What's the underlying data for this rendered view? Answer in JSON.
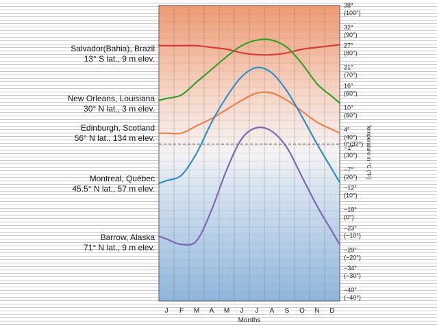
{
  "chart_data": {
    "type": "line",
    "xlabel": "Months",
    "ylabel": "Temperature in °C (°F)",
    "categories": [
      "J",
      "F",
      "M",
      "A",
      "M",
      "J",
      "J",
      "A",
      "S",
      "O",
      "N",
      "D"
    ],
    "ylim": [
      -43,
      38
    ],
    "y_ticks": [
      {
        "c": 38,
        "c_label": "38°",
        "f_label": "(100°)"
      },
      {
        "c": 32,
        "c_label": "32°",
        "f_label": "(90°)"
      },
      {
        "c": 27,
        "c_label": "27°",
        "f_label": "(80°)"
      },
      {
        "c": 21,
        "c_label": "21°",
        "f_label": "(70°)"
      },
      {
        "c": 16,
        "c_label": "16°",
        "f_label": "(60°)"
      },
      {
        "c": 10,
        "c_label": "10°",
        "f_label": "(50°)"
      },
      {
        "c": 4,
        "c_label": "4°",
        "f_label": "(40°)"
      },
      {
        "c": 0,
        "c_label": "0°(32°)",
        "f_label": ""
      },
      {
        "c": -1,
        "c_label": "−1°",
        "f_label": "(30°)"
      },
      {
        "c": -7,
        "c_label": "−7°",
        "f_label": "(20°)"
      },
      {
        "c": -12,
        "c_label": "−12°",
        "f_label": "(10°)"
      },
      {
        "c": -18,
        "c_label": "−18°",
        "f_label": "(0°)"
      },
      {
        "c": -23,
        "c_label": "−23°",
        "f_label": "(−10°)"
      },
      {
        "c": -29,
        "c_label": "−29°",
        "f_label": "(−20°)"
      },
      {
        "c": -34,
        "c_label": "−34°",
        "f_label": "(−30°)"
      },
      {
        "c": -40,
        "c_label": "−40°",
        "f_label": "(−40°)"
      }
    ],
    "grid": true,
    "series": [
      {
        "name": "Salvador(Bahia), Brazil",
        "label2": "13° S lat., 9 m elev.",
        "color": "#d93a34",
        "values": [
          27,
          27,
          27,
          26.5,
          26,
          25,
          24.5,
          24.5,
          25,
          26,
          26.5,
          27
        ]
      },
      {
        "name": "New Orleans, Louisiana",
        "label2": "30° N lat., 3 m elev.",
        "color": "#33a02c",
        "values": [
          12.5,
          13.5,
          17,
          20.5,
          24,
          27,
          28.5,
          28.5,
          26.5,
          22,
          16.5,
          13
        ]
      },
      {
        "name": "Edinburgh, Scotland",
        "label2": "56° N lat., 134 m elev.",
        "color": "#e8814a",
        "values": [
          3,
          3,
          5,
          7,
          9.5,
          12,
          14,
          14,
          12,
          9,
          6,
          4
        ]
      },
      {
        "name": "Montreal, Québec",
        "label2": "45.5° N lat., 57 m elev.",
        "color": "#2b8fc9",
        "values": [
          -10,
          -8.5,
          -2.5,
          6,
          13,
          18.5,
          21,
          19.5,
          14.5,
          7.5,
          0,
          -7
        ]
      },
      {
        "name": "Barrow, Alaska",
        "label2": "71° N lat., 9 m elev.",
        "color": "#7b68b3",
        "values": [
          -26,
          -27.5,
          -26.5,
          -18,
          -7,
          1.5,
          4.5,
          3.5,
          -1,
          -9,
          -17,
          -24
        ]
      }
    ]
  }
}
